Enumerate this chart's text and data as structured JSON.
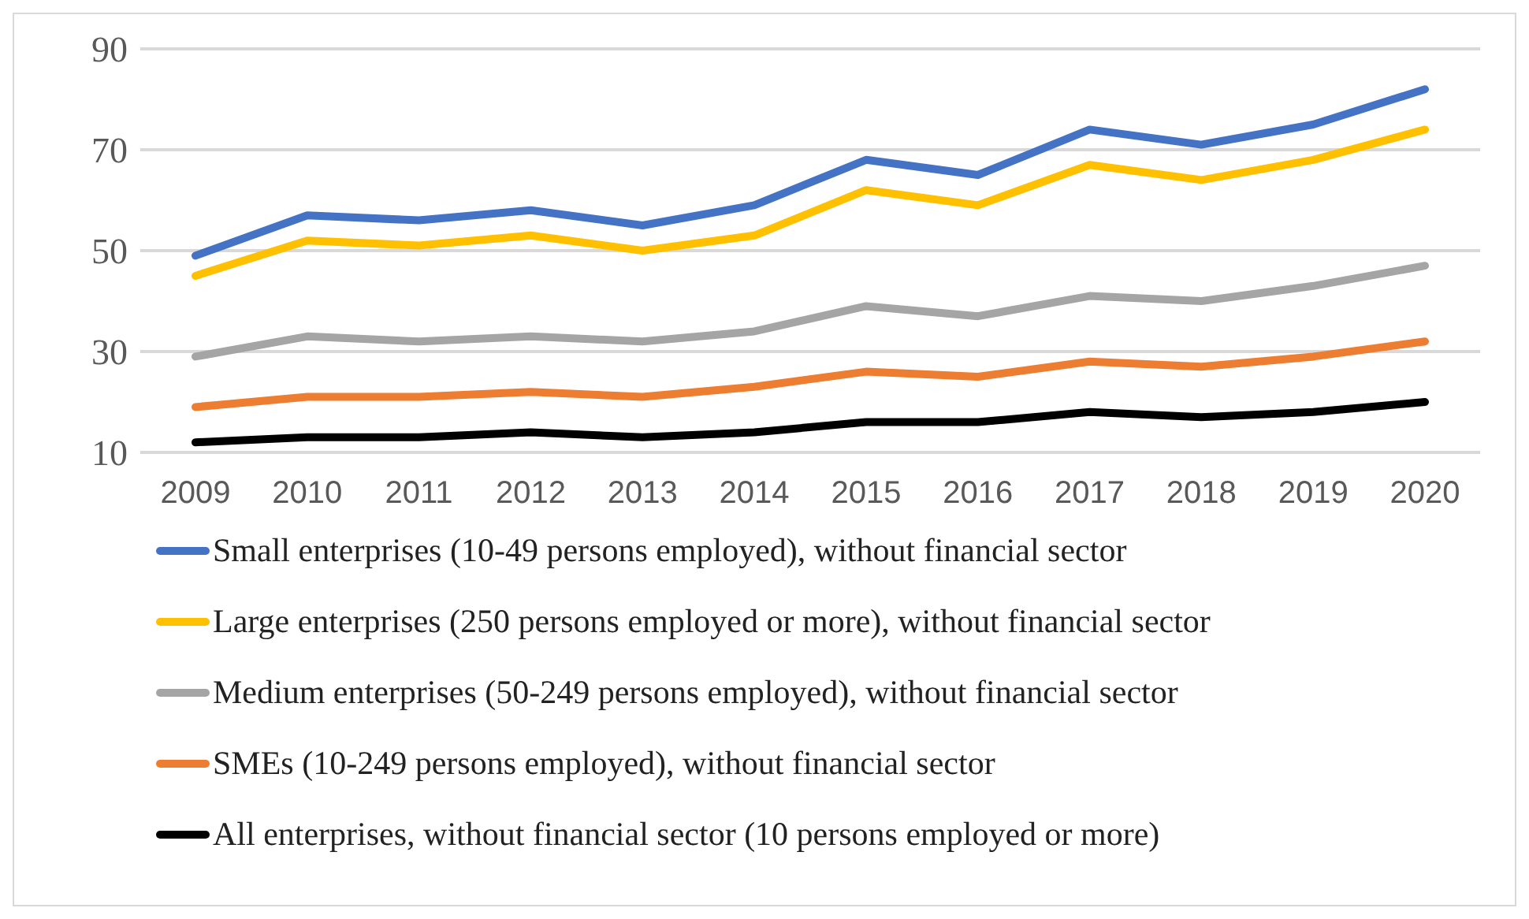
{
  "chart_data": {
    "type": "line",
    "categories": [
      "2009",
      "2010",
      "2011",
      "2012",
      "2013",
      "2014",
      "2015",
      "2016",
      "2017",
      "2018",
      "2019",
      "2020"
    ],
    "series": [
      {
        "name": "Small enterprises (10-49 persons employed), without financial sector",
        "color": "#4472c4",
        "values": [
          49,
          57,
          56,
          58,
          55,
          59,
          68,
          65,
          74,
          71,
          75,
          82
        ]
      },
      {
        "name": "Large enterprises (250 persons employed or more), without financial sector",
        "color": "#ffc000",
        "values": [
          45,
          52,
          51,
          53,
          50,
          53,
          62,
          59,
          67,
          64,
          68,
          74
        ]
      },
      {
        "name": "Medium enterprises (50-249 persons employed), without financial sector",
        "color": "#a5a5a5",
        "values": [
          29,
          33,
          32,
          33,
          32,
          34,
          39,
          37,
          41,
          40,
          43,
          47
        ]
      },
      {
        "name": "SMEs (10-249 persons employed), without financial sector",
        "color": "#ed7d31",
        "values": [
          19,
          21,
          21,
          22,
          21,
          23,
          26,
          25,
          28,
          27,
          29,
          32
        ]
      },
      {
        "name": "All enterprises, without financial sector (10 persons employed or more)",
        "color": "#000000",
        "values": [
          12,
          13,
          13,
          14,
          13,
          14,
          16,
          16,
          18,
          17,
          18,
          20
        ]
      }
    ],
    "ylim": [
      10,
      90
    ],
    "yticks": [
      10,
      30,
      50,
      70,
      90
    ],
    "grid": "y",
    "legend": "bottom",
    "marker": "none",
    "line_style": "solid"
  }
}
